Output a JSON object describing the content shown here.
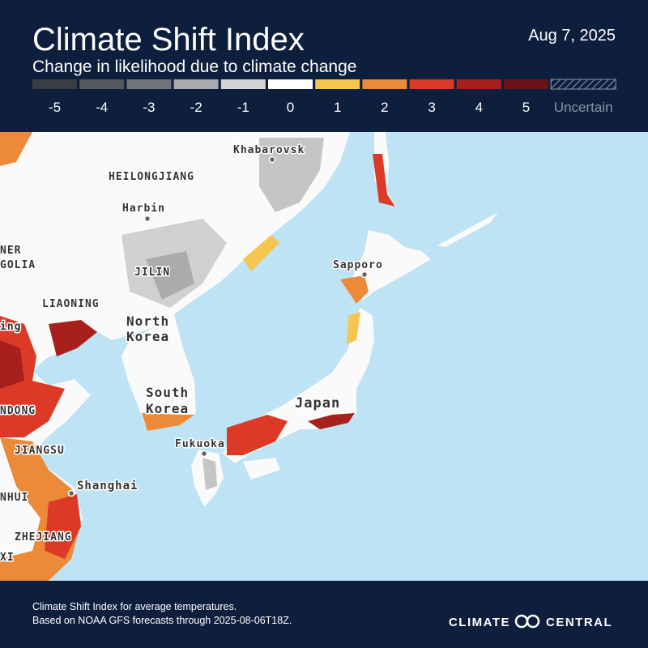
{
  "header": {
    "title": "Climate Shift Index",
    "subtitle": "Change in likelihood due to climate change",
    "date": "Aug 7, 2025"
  },
  "legend": {
    "items": [
      {
        "label": "-5",
        "color": "#3a3d42"
      },
      {
        "label": "-4",
        "color": "#55585d"
      },
      {
        "label": "-3",
        "color": "#717478"
      },
      {
        "label": "-2",
        "color": "#a9abad"
      },
      {
        "label": "-1",
        "color": "#d3d4d5"
      },
      {
        "label": "0",
        "color": "#ffffff"
      },
      {
        "label": "1",
        "color": "#f4c54f"
      },
      {
        "label": "2",
        "color": "#ec8a3a"
      },
      {
        "label": "3",
        "color": "#dc3a26"
      },
      {
        "label": "4",
        "color": "#a8201c"
      },
      {
        "label": "5",
        "color": "#6c1216"
      }
    ],
    "uncertain": "Uncertain"
  },
  "places": [
    "Khabarovsk",
    "HEILONGJIANG",
    "Harbin",
    "NER",
    "GOLIA",
    "JILIN",
    "LIAONING",
    "North",
    "Korea",
    "Sapporo",
    "ing",
    "South",
    "Korea",
    "Japan",
    "NDONG",
    "JIANGSU",
    "Fukuoka",
    "Shanghai",
    "NHUI",
    "ZHEJIANG",
    "XI"
  ],
  "footer": {
    "line1": "Climate Shift Index for average temperatures.",
    "line2": "Based on NOAA GFS forecasts through 2025-08-06T18Z.",
    "brand_left": "CLIMATE",
    "brand_right": "CENTRAL"
  }
}
